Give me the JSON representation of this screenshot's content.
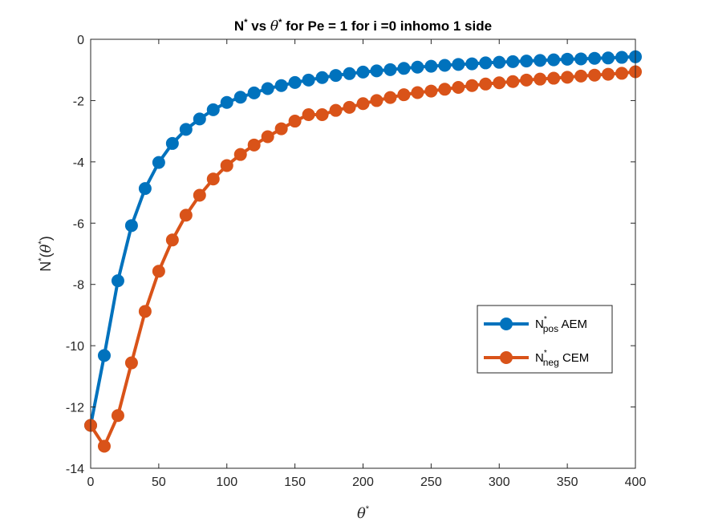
{
  "chart_data": {
    "type": "line",
    "title": {
      "base": "N",
      "sup": "*",
      "mid": " vs ",
      "theta": "θ",
      "theta_sup": "*",
      "rest": " for Pe = 1 for i =0 inhomo 1 side"
    },
    "xlabel": {
      "theta": "θ",
      "sup": "*"
    },
    "ylabel": {
      "base": "N",
      "sup": "*",
      "open": "(",
      "theta": "θ",
      "theta_sup": "*",
      "close": ")"
    },
    "xlim": [
      0,
      400
    ],
    "ylim": [
      -14,
      0
    ],
    "xticks": [
      "0",
      "50",
      "100",
      "150",
      "200",
      "250",
      "300",
      "350",
      "400"
    ],
    "yticks": [
      "-14",
      "-12",
      "-10",
      "-8",
      "-6",
      "-4",
      "-2",
      "0"
    ],
    "grid": false,
    "legend_position": "right-lower",
    "x": [
      0,
      10,
      20,
      30,
      40,
      50,
      60,
      70,
      80,
      90,
      100,
      110,
      120,
      130,
      140,
      150,
      160,
      170,
      180,
      190,
      200,
      210,
      220,
      230,
      240,
      250,
      260,
      270,
      280,
      290,
      300,
      310,
      320,
      330,
      340,
      350,
      360,
      370,
      380,
      390,
      400
    ],
    "series": [
      {
        "name": {
          "base": "N",
          "sup": "*",
          "sub": "pos",
          "suffix": " AEM"
        },
        "color": "#0072BD",
        "values": [
          -12.6,
          -10.32,
          -7.88,
          -6.08,
          -4.87,
          -4.02,
          -3.4,
          -2.94,
          -2.6,
          -2.3,
          -2.06,
          -1.89,
          -1.75,
          -1.61,
          -1.51,
          -1.41,
          -1.33,
          -1.25,
          -1.18,
          -1.12,
          -1.07,
          -1.03,
          -0.99,
          -0.95,
          -0.91,
          -0.88,
          -0.85,
          -0.82,
          -0.8,
          -0.77,
          -0.75,
          -0.73,
          -0.71,
          -0.69,
          -0.67,
          -0.65,
          -0.64,
          -0.62,
          -0.61,
          -0.59,
          -0.57
        ]
      },
      {
        "name": {
          "base": "N",
          "sup": "*",
          "sub": "neg",
          "suffix": " CEM"
        },
        "color": "#D95319",
        "values": [
          -12.6,
          -13.28,
          -12.28,
          -10.56,
          -8.88,
          -7.57,
          -6.55,
          -5.74,
          -5.09,
          -4.56,
          -4.12,
          -3.76,
          -3.45,
          -3.18,
          -2.92,
          -2.67,
          -2.46,
          -2.46,
          -2.32,
          -2.22,
          -2.1,
          -2.0,
          -1.9,
          -1.81,
          -1.74,
          -1.69,
          -1.63,
          -1.57,
          -1.51,
          -1.46,
          -1.42,
          -1.38,
          -1.33,
          -1.3,
          -1.27,
          -1.24,
          -1.2,
          -1.17,
          -1.14,
          -1.11,
          -1.06
        ]
      }
    ]
  }
}
